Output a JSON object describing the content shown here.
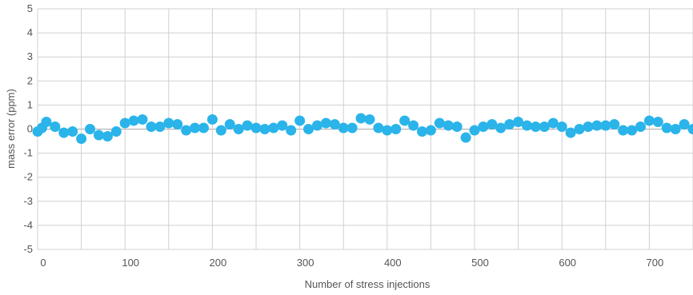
{
  "chart_data": {
    "type": "scatter",
    "title": "",
    "xlabel": "Number of stress injections",
    "ylabel": "mass error (ppm)",
    "xlim": [
      0,
      750
    ],
    "ylim": [
      -5,
      5
    ],
    "x_ticks": [
      0,
      100,
      200,
      300,
      400,
      500,
      600,
      700
    ],
    "y_ticks": [
      -5,
      -4,
      -3,
      -2,
      -1,
      0,
      1,
      2,
      3,
      4,
      5
    ],
    "grid": true,
    "legend": "none",
    "colors": {
      "points": "#2ab4ea",
      "grid": "#d0d0d0",
      "zero_line": "#a8a8a8"
    },
    "series": [
      {
        "x": [
          0,
          5,
          10,
          20,
          30,
          40,
          50,
          60,
          70,
          80,
          90,
          100,
          110,
          120,
          130,
          140,
          150,
          160,
          170,
          180,
          190,
          200,
          210,
          220,
          230,
          240,
          250,
          260,
          270,
          280,
          290,
          300,
          310,
          320,
          330,
          340,
          350,
          360,
          370,
          380,
          390,
          400,
          410,
          420,
          430,
          440,
          450,
          460,
          470,
          480,
          490,
          500,
          510,
          520,
          530,
          540,
          550,
          560,
          570,
          580,
          590,
          600,
          610,
          620,
          630,
          640,
          650,
          660,
          670,
          680,
          690,
          700,
          710,
          720,
          730,
          740,
          750
        ],
        "y": [
          -0.1,
          0.05,
          0.3,
          0.1,
          -0.15,
          -0.1,
          -0.4,
          0.0,
          -0.25,
          -0.3,
          -0.1,
          0.25,
          0.35,
          0.4,
          0.1,
          0.1,
          0.25,
          0.2,
          -0.05,
          0.05,
          0.05,
          0.4,
          -0.05,
          0.2,
          0.0,
          0.15,
          0.05,
          0.0,
          0.05,
          0.15,
          -0.05,
          0.35,
          0.0,
          0.15,
          0.25,
          0.2,
          0.05,
          0.05,
          0.45,
          0.4,
          0.05,
          -0.05,
          0.0,
          0.35,
          0.15,
          -0.1,
          -0.05,
          0.25,
          0.15,
          0.1,
          -0.35,
          -0.05,
          0.1,
          0.2,
          0.05,
          0.2,
          0.3,
          0.15,
          0.1,
          0.1,
          0.25,
          0.1,
          -0.15,
          0.0,
          0.1,
          0.15,
          0.15,
          0.2,
          -0.05,
          -0.05,
          0.1,
          0.35,
          0.3,
          0.05,
          0.0,
          0.2,
          0.0
        ]
      }
    ]
  }
}
